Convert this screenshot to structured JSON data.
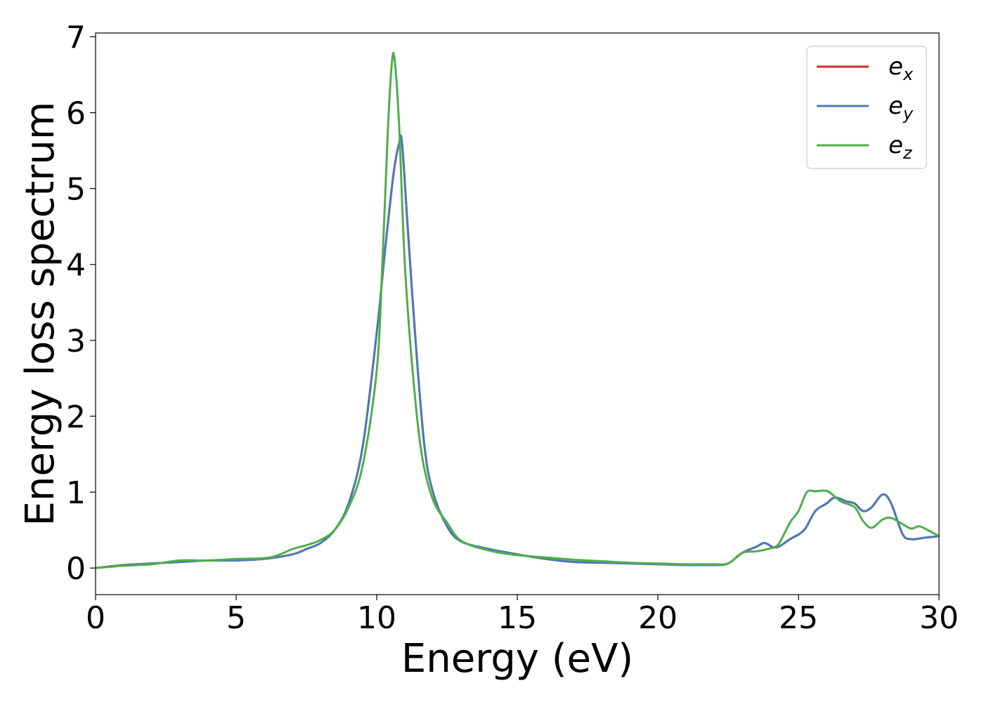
{
  "chart_data": {
    "type": "line",
    "title": "",
    "xlabel": "Energy (eV)",
    "ylabel": "Energy loss spectrum",
    "xlim": [
      0,
      30
    ],
    "ylim": [
      -0.35,
      7.05
    ],
    "xticks": [
      0,
      5,
      10,
      15,
      20,
      25,
      30
    ],
    "yticks": [
      0,
      1,
      2,
      3,
      4,
      5,
      6,
      7
    ],
    "grid": false,
    "legend_position": "top-right",
    "series": [
      {
        "name": "e_x",
        "legend_base": "e",
        "legend_sub": "x",
        "color": "#d62728",
        "x": [
          0,
          1,
          2,
          3,
          4,
          5,
          6,
          7,
          7.5,
          8,
          8.5,
          9,
          9.5,
          10,
          10.3,
          10.6,
          10.8,
          10.9,
          11.1,
          11.4,
          11.7,
          12,
          12.5,
          13,
          14,
          15,
          16,
          17,
          18,
          19,
          20,
          21,
          22,
          22.5,
          23,
          23.5,
          23.8,
          24.2,
          24.7,
          25.2,
          25.6,
          26,
          26.3,
          26.7,
          27,
          27.3,
          27.6,
          28,
          28.3,
          28.7,
          29,
          29.5,
          30
        ],
        "y": [
          0,
          0.04,
          0.06,
          0.08,
          0.1,
          0.1,
          0.12,
          0.18,
          0.25,
          0.33,
          0.5,
          0.85,
          1.6,
          3.1,
          4.2,
          5.2,
          5.6,
          5.6,
          4.5,
          2.9,
          1.6,
          1.0,
          0.55,
          0.35,
          0.25,
          0.18,
          0.12,
          0.08,
          0.07,
          0.06,
          0.05,
          0.04,
          0.04,
          0.06,
          0.2,
          0.28,
          0.33,
          0.27,
          0.38,
          0.5,
          0.75,
          0.85,
          0.93,
          0.88,
          0.85,
          0.75,
          0.8,
          0.97,
          0.85,
          0.45,
          0.38,
          0.4,
          0.42
        ]
      },
      {
        "name": "e_y",
        "legend_base": "e",
        "legend_sub": "y",
        "color": "#4a7bb7",
        "x": [
          0,
          1,
          2,
          3,
          4,
          5,
          6,
          7,
          7.5,
          8,
          8.5,
          9,
          9.5,
          10,
          10.3,
          10.6,
          10.8,
          10.9,
          11.1,
          11.4,
          11.7,
          12,
          12.5,
          13,
          14,
          15,
          16,
          17,
          18,
          19,
          20,
          21,
          22,
          22.5,
          23,
          23.5,
          23.8,
          24.2,
          24.7,
          25.2,
          25.6,
          26,
          26.3,
          26.7,
          27,
          27.3,
          27.6,
          28,
          28.3,
          28.7,
          29,
          29.5,
          30
        ],
        "y": [
          0,
          0.04,
          0.06,
          0.08,
          0.1,
          0.1,
          0.12,
          0.18,
          0.25,
          0.33,
          0.5,
          0.85,
          1.6,
          3.1,
          4.2,
          5.2,
          5.6,
          5.6,
          4.5,
          2.9,
          1.6,
          1.0,
          0.55,
          0.35,
          0.25,
          0.18,
          0.12,
          0.08,
          0.07,
          0.06,
          0.05,
          0.04,
          0.04,
          0.06,
          0.2,
          0.28,
          0.33,
          0.27,
          0.38,
          0.5,
          0.75,
          0.85,
          0.93,
          0.88,
          0.85,
          0.75,
          0.8,
          0.97,
          0.85,
          0.45,
          0.38,
          0.4,
          0.42
        ]
      },
      {
        "name": "e_z",
        "legend_base": "e",
        "legend_sub": "z",
        "color": "#4daf4a",
        "x": [
          0,
          1,
          2,
          3,
          4,
          5,
          6,
          6.5,
          7,
          7.5,
          8,
          8.5,
          9,
          9.5,
          10,
          10.2,
          10.4,
          10.55,
          10.65,
          10.8,
          11,
          11.3,
          11.6,
          12,
          12.5,
          13,
          14,
          15,
          16,
          17,
          18,
          19,
          20,
          21,
          22,
          22.5,
          23,
          23.5,
          24,
          24.3,
          24.7,
          25,
          25.3,
          25.6,
          25.9,
          26.1,
          26.5,
          27,
          27.3,
          27.6,
          28,
          28.3,
          28.7,
          29,
          29.3,
          29.6,
          30
        ],
        "y": [
          0,
          0.03,
          0.05,
          0.1,
          0.1,
          0.12,
          0.13,
          0.17,
          0.25,
          0.3,
          0.37,
          0.5,
          0.8,
          1.35,
          2.6,
          4.0,
          5.8,
          6.7,
          6.65,
          5.8,
          4.0,
          2.5,
          1.5,
          0.9,
          0.6,
          0.36,
          0.23,
          0.17,
          0.14,
          0.11,
          0.09,
          0.07,
          0.06,
          0.05,
          0.05,
          0.06,
          0.2,
          0.22,
          0.26,
          0.32,
          0.6,
          0.75,
          1.0,
          1.01,
          1.02,
          1.0,
          0.88,
          0.8,
          0.62,
          0.53,
          0.64,
          0.66,
          0.58,
          0.52,
          0.55,
          0.5,
          0.42
        ]
      }
    ]
  }
}
